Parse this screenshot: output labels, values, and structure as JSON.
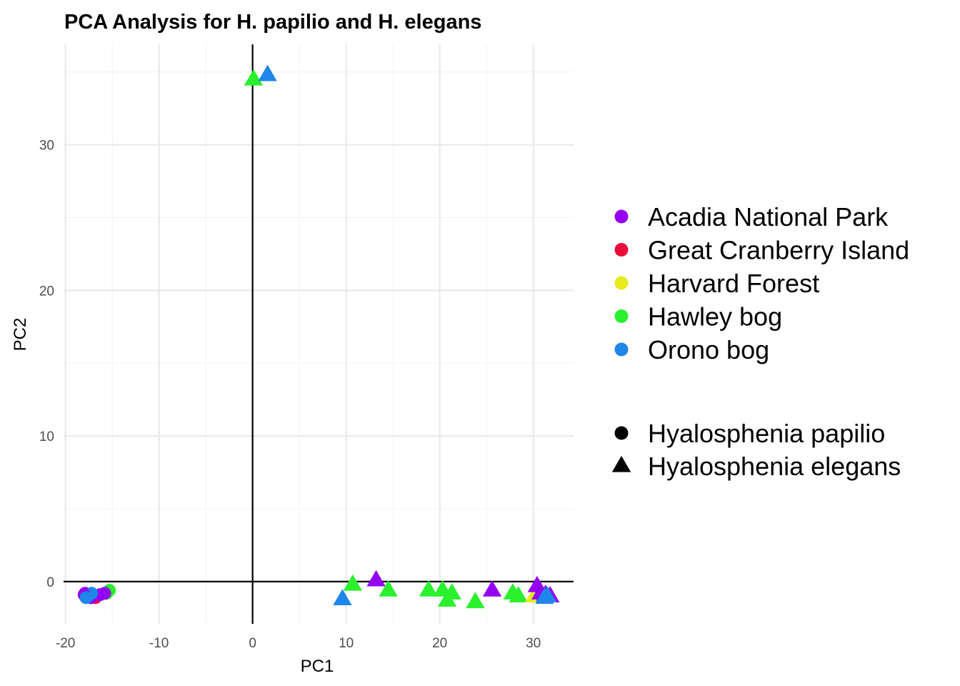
{
  "chart_data": {
    "type": "scatter",
    "title": "PCA Analysis for H. papilio and H. elegans",
    "xlabel": "PC1",
    "ylabel": "PC2",
    "xlim": [
      -20.2,
      34.3
    ],
    "ylim": [
      -2.9,
      36.9
    ],
    "xticks": [
      -20,
      -10,
      0,
      10,
      20,
      30
    ],
    "yticks": [
      0,
      10,
      20,
      30
    ],
    "grid": true,
    "reference_lines": {
      "x": 0,
      "y": 0
    },
    "legend_position": "right",
    "color_legend": [
      {
        "name": "Acadia National Park",
        "color": "#9400f2"
      },
      {
        "name": "Great Cranberry Island",
        "color": "#ea0b3a"
      },
      {
        "name": "Harvard Forest",
        "color": "#e6ea1f"
      },
      {
        "name": "Hawley bog",
        "color": "#2bf02e"
      },
      {
        "name": "Orono bog",
        "color": "#1f86ea"
      }
    ],
    "shape_legend": [
      {
        "name": "Hyalosphenia papilio",
        "shape": "circle"
      },
      {
        "name": "Hyalosphenia elegans",
        "shape": "triangle"
      }
    ],
    "points": [
      {
        "x": -15.3,
        "y": -0.6,
        "site": "Hawley bog",
        "species": "Hyalosphenia papilio"
      },
      {
        "x": -15.6,
        "y": -0.8,
        "site": "Hawley bog",
        "species": "Hyalosphenia papilio"
      },
      {
        "x": -15.8,
        "y": -0.8,
        "site": "Acadia National Park",
        "species": "Hyalosphenia papilio"
      },
      {
        "x": -16.8,
        "y": -1.1,
        "site": "Great Cranberry Island",
        "species": "Hyalosphenia papilio"
      },
      {
        "x": -16.3,
        "y": -0.9,
        "site": "Acadia National Park",
        "species": "Hyalosphenia papilio"
      },
      {
        "x": -17.3,
        "y": -1.1,
        "site": "Acadia National Park",
        "species": "Hyalosphenia papilio"
      },
      {
        "x": -17.6,
        "y": -1.0,
        "site": "Great Cranberry Island",
        "species": "Hyalosphenia papilio"
      },
      {
        "x": -17.9,
        "y": -0.8,
        "site": "Acadia National Park",
        "species": "Hyalosphenia papilio"
      },
      {
        "x": -17.2,
        "y": -0.8,
        "site": "Orono bog",
        "species": "Hyalosphenia papilio"
      },
      {
        "x": -17.6,
        "y": -1.0,
        "site": "Orono bog",
        "species": "Hyalosphenia papilio"
      },
      {
        "x": -18.0,
        "y": -0.9,
        "site": "Acadia National Park",
        "species": "Hyalosphenia papilio"
      },
      {
        "x": -17.8,
        "y": -1.1,
        "site": "Orono bog",
        "species": "Hyalosphenia papilio"
      },
      {
        "x": 0.1,
        "y": 34.5,
        "site": "Hawley bog",
        "species": "Hyalosphenia elegans"
      },
      {
        "x": 1.6,
        "y": 34.8,
        "site": "Orono bog",
        "species": "Hyalosphenia elegans"
      },
      {
        "x": 9.6,
        "y": -1.2,
        "site": "Orono bog",
        "species": "Hyalosphenia elegans"
      },
      {
        "x": 10.7,
        "y": -0.2,
        "site": "Hawley bog",
        "species": "Hyalosphenia elegans"
      },
      {
        "x": 13.2,
        "y": 0.1,
        "site": "Acadia National Park",
        "species": "Hyalosphenia elegans"
      },
      {
        "x": 14.5,
        "y": -0.6,
        "site": "Hawley bog",
        "species": "Hyalosphenia elegans"
      },
      {
        "x": 18.8,
        "y": -0.6,
        "site": "Hawley bog",
        "species": "Hyalosphenia elegans"
      },
      {
        "x": 20.3,
        "y": -0.6,
        "site": "Hawley bog",
        "species": "Hyalosphenia elegans"
      },
      {
        "x": 21.3,
        "y": -0.8,
        "site": "Hawley bog",
        "species": "Hyalosphenia elegans"
      },
      {
        "x": 20.8,
        "y": -1.3,
        "site": "Hawley bog",
        "species": "Hyalosphenia elegans"
      },
      {
        "x": 23.8,
        "y": -1.4,
        "site": "Hawley bog",
        "species": "Hyalosphenia elegans"
      },
      {
        "x": 25.6,
        "y": -0.6,
        "site": "Acadia National Park",
        "species": "Hyalosphenia elegans"
      },
      {
        "x": 27.8,
        "y": -0.8,
        "site": "Hawley bog",
        "species": "Hyalosphenia elegans"
      },
      {
        "x": 28.4,
        "y": -1.0,
        "site": "Hawley bog",
        "species": "Hyalosphenia elegans"
      },
      {
        "x": 30.1,
        "y": -1.0,
        "site": "Harvard Forest",
        "species": "Hyalosphenia elegans"
      },
      {
        "x": 30.4,
        "y": -0.3,
        "site": "Acadia National Park",
        "species": "Hyalosphenia elegans"
      },
      {
        "x": 30.8,
        "y": -0.8,
        "site": "Acadia National Park",
        "species": "Hyalosphenia elegans"
      },
      {
        "x": 31.3,
        "y": -0.9,
        "site": "Acadia National Park",
        "species": "Hyalosphenia elegans"
      },
      {
        "x": 31.8,
        "y": -1.0,
        "site": "Acadia National Park",
        "species": "Hyalosphenia elegans"
      },
      {
        "x": 31.2,
        "y": -1.1,
        "site": "Orono bog",
        "species": "Hyalosphenia elegans"
      },
      {
        "x": 31.5,
        "y": -1.0,
        "site": "Orono bog",
        "species": "Hyalosphenia elegans"
      }
    ]
  }
}
